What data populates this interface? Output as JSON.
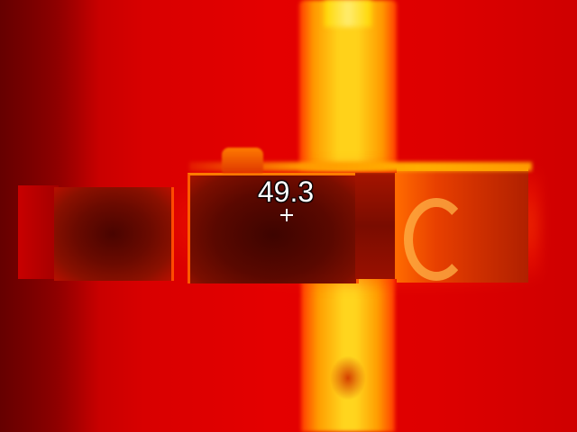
{
  "thermal_image": {
    "spot_temperature": "49.3",
    "crosshair_icon": "crosshair-icon",
    "palette": {
      "background": "#d40000",
      "hot": "#ffd21a",
      "cold": "#3e0400"
    }
  }
}
